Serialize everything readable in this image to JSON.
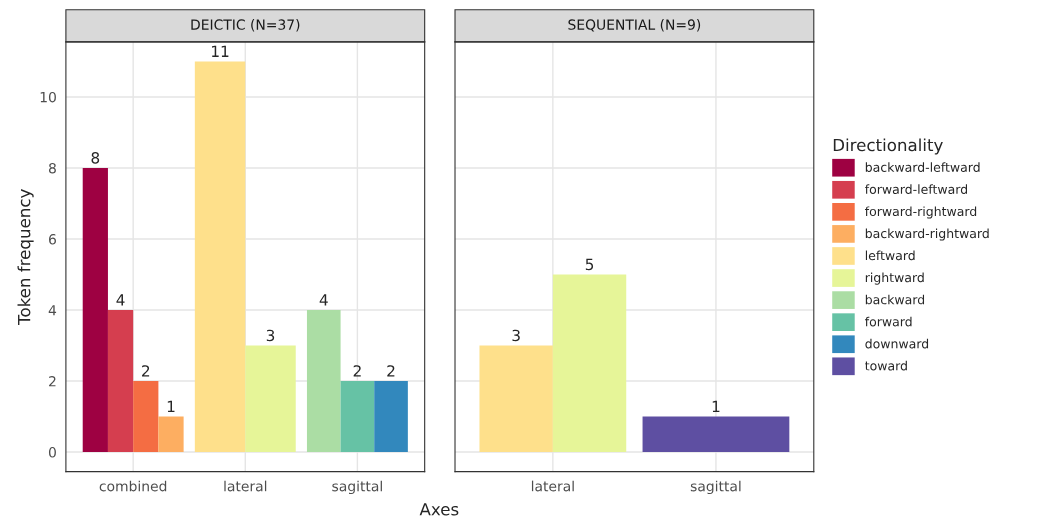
{
  "chart_data": [
    {
      "type": "bar",
      "title": "DEICTIC (N=37)",
      "xlabel": "Axes",
      "ylabel": "Token frequency",
      "categories": [
        "combined",
        "lateral",
        "sagittal"
      ],
      "ylim": [
        -0.55,
        11.55
      ],
      "yticks": [
        0,
        2,
        4,
        6,
        8,
        10
      ],
      "grid": true,
      "legend": "right",
      "data_labels": true,
      "series": [
        {
          "name": "backward-leftward",
          "color": "#9e0142",
          "values": [
            8,
            null,
            null
          ]
        },
        {
          "name": "forward-leftward",
          "color": "#d53e4f",
          "values": [
            4,
            null,
            null
          ]
        },
        {
          "name": "forward-rightward",
          "color": "#f46d43",
          "values": [
            2,
            null,
            null
          ]
        },
        {
          "name": "backward-rightward",
          "color": "#fdae61",
          "values": [
            1,
            null,
            null
          ]
        },
        {
          "name": "leftward",
          "color": "#fee08b",
          "values": [
            null,
            11,
            null
          ]
        },
        {
          "name": "rightward",
          "color": "#e6f598",
          "values": [
            null,
            3,
            null
          ]
        },
        {
          "name": "backward",
          "color": "#abdda4",
          "values": [
            null,
            null,
            4
          ]
        },
        {
          "name": "forward",
          "color": "#66c2a5",
          "values": [
            null,
            null,
            2
          ]
        },
        {
          "name": "downward",
          "color": "#3288bd",
          "values": [
            null,
            null,
            2
          ]
        }
      ]
    },
    {
      "type": "bar",
      "title": "SEQUENTIAL (N=9)",
      "legend_title": "Directionality",
      "categories": [
        "lateral",
        "sagittal"
      ],
      "ylim": [
        -0.55,
        11.55
      ],
      "yticks": [
        0,
        2,
        4,
        6,
        8,
        10
      ],
      "tick_labels": "x",
      "grid": true,
      "legend": "right",
      "data_labels": true,
      "series": [
        {
          "name": "leftward",
          "color": "#fee08b",
          "values": [
            3,
            null
          ]
        },
        {
          "name": "rightward",
          "color": "#e6f598",
          "values": [
            5,
            null
          ]
        },
        {
          "name": "toward",
          "color": "#5e4fa2",
          "values": [
            null,
            1
          ]
        }
      ]
    }
  ]
}
